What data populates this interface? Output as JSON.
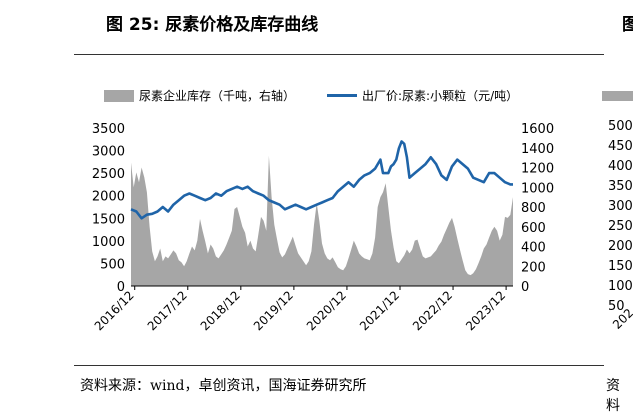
{
  "title": "图 25:  尿素价格及库存曲线",
  "source": "资料来源：wind，卓创资讯，国海证券研究所",
  "right_panel": {
    "title_partial": "图",
    "yticks_partial": [
      "500",
      "450",
      "400",
      "350",
      "300",
      "250",
      "200",
      "150",
      "100",
      "50"
    ],
    "xtick_partial": "202",
    "source_partial": "资料"
  },
  "chart_data": {
    "type": "area",
    "legend_position": "top",
    "grid": false,
    "x_ticks": [
      "2016/12",
      "2017/12",
      "2018/12",
      "2019/12",
      "2020/12",
      "2021/12",
      "2022/12",
      "2023/12"
    ],
    "x_range": [
      2016.85,
      2024.05
    ],
    "left_axis": {
      "label": "",
      "ticks": [
        0,
        500,
        1000,
        1500,
        2000,
        2500,
        3000,
        3500
      ],
      "ylim": [
        0,
        3500
      ]
    },
    "right_axis": {
      "label": "",
      "ticks": [
        0,
        200,
        400,
        600,
        800,
        1000,
        1200,
        1400,
        1600
      ],
      "ylim": [
        0,
        1600
      ]
    },
    "series": [
      {
        "name": "尿素企业库存（千吨，右轴）",
        "type": "area",
        "axis": "right",
        "color": "#a6a6a6",
        "x": [
          2016.85,
          2016.9,
          2016.95,
          2017.0,
          2017.05,
          2017.1,
          2017.15,
          2017.2,
          2017.25,
          2017.3,
          2017.35,
          2017.4,
          2017.45,
          2017.5,
          2017.55,
          2017.6,
          2017.65,
          2017.7,
          2017.75,
          2017.8,
          2017.85,
          2017.9,
          2017.95,
          2018.0,
          2018.05,
          2018.1,
          2018.15,
          2018.2,
          2018.25,
          2018.3,
          2018.35,
          2018.4,
          2018.45,
          2018.5,
          2018.55,
          2018.6,
          2018.65,
          2018.7,
          2018.75,
          2018.8,
          2018.85,
          2018.9,
          2018.95,
          2019.0,
          2019.05,
          2019.1,
          2019.15,
          2019.2,
          2019.25,
          2019.3,
          2019.35,
          2019.4,
          2019.45,
          2019.5,
          2019.55,
          2019.6,
          2019.65,
          2019.7,
          2019.75,
          2019.8,
          2019.85,
          2019.9,
          2019.95,
          2020.0,
          2020.05,
          2020.1,
          2020.15,
          2020.2,
          2020.25,
          2020.3,
          2020.35,
          2020.4,
          2020.45,
          2020.5,
          2020.55,
          2020.6,
          2020.65,
          2020.7,
          2020.75,
          2020.8,
          2020.85,
          2020.9,
          2020.95,
          2021.0,
          2021.05,
          2021.1,
          2021.15,
          2021.2,
          2021.25,
          2021.3,
          2021.35,
          2021.4,
          2021.45,
          2021.5,
          2021.55,
          2021.6,
          2021.65,
          2021.7,
          2021.75,
          2021.8,
          2021.85,
          2021.9,
          2021.95,
          2022.0,
          2022.05,
          2022.1,
          2022.15,
          2022.2,
          2022.25,
          2022.3,
          2022.35,
          2022.4,
          2022.45,
          2022.5,
          2022.55,
          2022.6,
          2022.65,
          2022.7,
          2022.75,
          2022.8,
          2022.85,
          2022.9,
          2022.95,
          2023.0,
          2023.05,
          2023.1,
          2023.15,
          2023.2,
          2023.25,
          2023.3,
          2023.35,
          2023.4,
          2023.45,
          2023.5,
          2023.55,
          2023.6,
          2023.65,
          2023.7,
          2023.75,
          2023.8,
          2023.85,
          2023.9,
          2023.95,
          2024.0,
          2024.05
        ],
        "values": [
          1250,
          1000,
          1150,
          1050,
          1200,
          1100,
          950,
          600,
          350,
          250,
          300,
          380,
          250,
          300,
          280,
          320,
          360,
          330,
          260,
          240,
          200,
          250,
          330,
          400,
          360,
          460,
          680,
          560,
          450,
          330,
          420,
          380,
          300,
          280,
          320,
          360,
          420,
          490,
          560,
          780,
          800,
          700,
          600,
          540,
          400,
          460,
          380,
          350,
          520,
          700,
          660,
          560,
          1320,
          900,
          620,
          480,
          340,
          290,
          320,
          380,
          440,
          500,
          410,
          330,
          290,
          250,
          210,
          250,
          350,
          620,
          840,
          660,
          430,
          330,
          280,
          260,
          290,
          240,
          190,
          170,
          160,
          200,
          280,
          370,
          460,
          400,
          330,
          300,
          280,
          270,
          260,
          330,
          490,
          800,
          900,
          950,
          1040,
          800,
          560,
          390,
          250,
          230,
          270,
          310,
          370,
          330,
          370,
          460,
          470,
          380,
          300,
          280,
          290,
          300,
          330,
          360,
          410,
          450,
          520,
          580,
          640,
          690,
          600,
          480,
          370,
          260,
          160,
          120,
          110,
          130,
          170,
          230,
          300,
          380,
          420,
          490,
          560,
          600,
          560,
          460,
          520,
          700,
          690,
          720,
          900
        ],
        "values_note": "read from right axis scale (0–1600)"
      },
      {
        "name": "出厂价:尿素:小颗粒（元/吨）",
        "type": "line",
        "axis": "left",
        "color": "#1f64a8",
        "x": [
          2016.85,
          2016.95,
          2017.05,
          2017.15,
          2017.25,
          2017.35,
          2017.45,
          2017.55,
          2017.65,
          2017.75,
          2017.85,
          2017.95,
          2018.05,
          2018.15,
          2018.25,
          2018.35,
          2018.45,
          2018.55,
          2018.65,
          2018.75,
          2018.85,
          2018.95,
          2019.05,
          2019.15,
          2019.25,
          2019.35,
          2019.45,
          2019.55,
          2019.65,
          2019.75,
          2019.85,
          2019.95,
          2020.05,
          2020.15,
          2020.25,
          2020.35,
          2020.45,
          2020.55,
          2020.65,
          2020.75,
          2020.85,
          2020.95,
          2021.05,
          2021.15,
          2021.25,
          2021.35,
          2021.45,
          2021.55,
          2021.6,
          2021.7,
          2021.75,
          2021.8,
          2021.85,
          2021.9,
          2021.95,
          2022.0,
          2022.05,
          2022.1,
          2022.2,
          2022.3,
          2022.4,
          2022.5,
          2022.6,
          2022.7,
          2022.8,
          2022.9,
          2023.0,
          2023.1,
          2023.2,
          2023.3,
          2023.4,
          2023.5,
          2023.6,
          2023.7,
          2023.8,
          2023.9,
          2024.0,
          2024.05
        ],
        "values": [
          1700,
          1650,
          1500,
          1580,
          1600,
          1650,
          1750,
          1650,
          1800,
          1900,
          2000,
          2050,
          2000,
          1950,
          1900,
          1950,
          2050,
          2000,
          2100,
          2150,
          2200,
          2150,
          2200,
          2100,
          2050,
          2000,
          1900,
          1850,
          1800,
          1700,
          1750,
          1800,
          1750,
          1700,
          1750,
          1800,
          1850,
          1900,
          1950,
          2100,
          2200,
          2300,
          2200,
          2350,
          2450,
          2500,
          2600,
          2800,
          2500,
          2500,
          2650,
          2700,
          2800,
          3050,
          3200,
          3150,
          2850,
          2400,
          2500,
          2600,
          2700,
          2850,
          2700,
          2450,
          2350,
          2650,
          2800,
          2700,
          2600,
          2400,
          2350,
          2300,
          2500,
          2500,
          2400,
          2300,
          2250,
          2250
        ]
      }
    ]
  }
}
